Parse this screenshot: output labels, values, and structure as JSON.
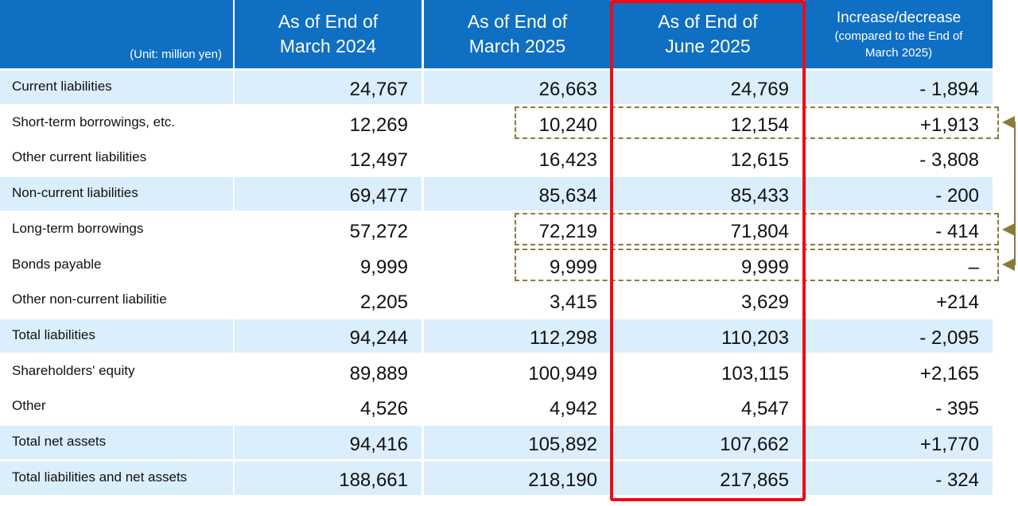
{
  "header": {
    "unit": "(Unit: million yen)",
    "col1": [
      "As of End of",
      "March 2024"
    ],
    "col2": [
      "As of End of",
      "March 2025"
    ],
    "col3": [
      "As of End of",
      "June 2025"
    ],
    "col4_title": "Increase/decrease",
    "col4_note": [
      "(compared to the End of",
      "March 2025)"
    ]
  },
  "rows": [
    {
      "label": "Current liabilities",
      "v1": "24,767",
      "v2": "26,663",
      "v3": "24,769",
      "v4": "- 1,894",
      "shade": "blue"
    },
    {
      "label": "Short-term borrowings, etc.",
      "v1": "12,269",
      "v2": "10,240",
      "v3": "12,154",
      "v4": "+1,913",
      "shade": "white"
    },
    {
      "label": "Other current liabilities",
      "v1": "12,497",
      "v2": "16,423",
      "v3": "12,615",
      "v4": "- 3,808",
      "shade": "white"
    },
    {
      "label": "Non-current liabilities",
      "v1": "69,477",
      "v2": "85,634",
      "v3": "85,433",
      "v4": "- 200",
      "shade": "blue"
    },
    {
      "label": "Long-term borrowings",
      "v1": "57,272",
      "v2": "72,219",
      "v3": "71,804",
      "v4": "- 414",
      "shade": "white"
    },
    {
      "label": "Bonds payable",
      "v1": "9,999",
      "v2": "9,999",
      "v3": "9,999",
      "v4": "–",
      "shade": "white"
    },
    {
      "label": "Other non-current liabilitie",
      "v1": "2,205",
      "v2": "3,415",
      "v3": "3,629",
      "v4": "+214",
      "shade": "white"
    },
    {
      "label": "Total liabilities",
      "v1": "94,244",
      "v2": "112,298",
      "v3": "110,203",
      "v4": "- 2,095",
      "shade": "blue"
    },
    {
      "label": "Shareholders' equity",
      "v1": "89,889",
      "v2": "100,949",
      "v3": "103,115",
      "v4": "+2,165",
      "shade": "white"
    },
    {
      "label": "Other",
      "v1": "4,526",
      "v2": "4,942",
      "v3": "4,547",
      "v4": "- 395",
      "shade": "white"
    },
    {
      "label": "Total net assets",
      "v1": "94,416",
      "v2": "105,892",
      "v3": "107,662",
      "v4": "+1,770",
      "shade": "blue"
    },
    {
      "label": "Total liabilities and net assets",
      "v1": "188,661",
      "v2": "218,190",
      "v3": "217,865",
      "v4": "- 324",
      "shade": "blue"
    }
  ],
  "colors": {
    "header_bg": "#0f6fc2",
    "row_blue": "#daeefc",
    "highlight_border": "#ee0b15",
    "dashed_border": "#8a7a3e"
  }
}
